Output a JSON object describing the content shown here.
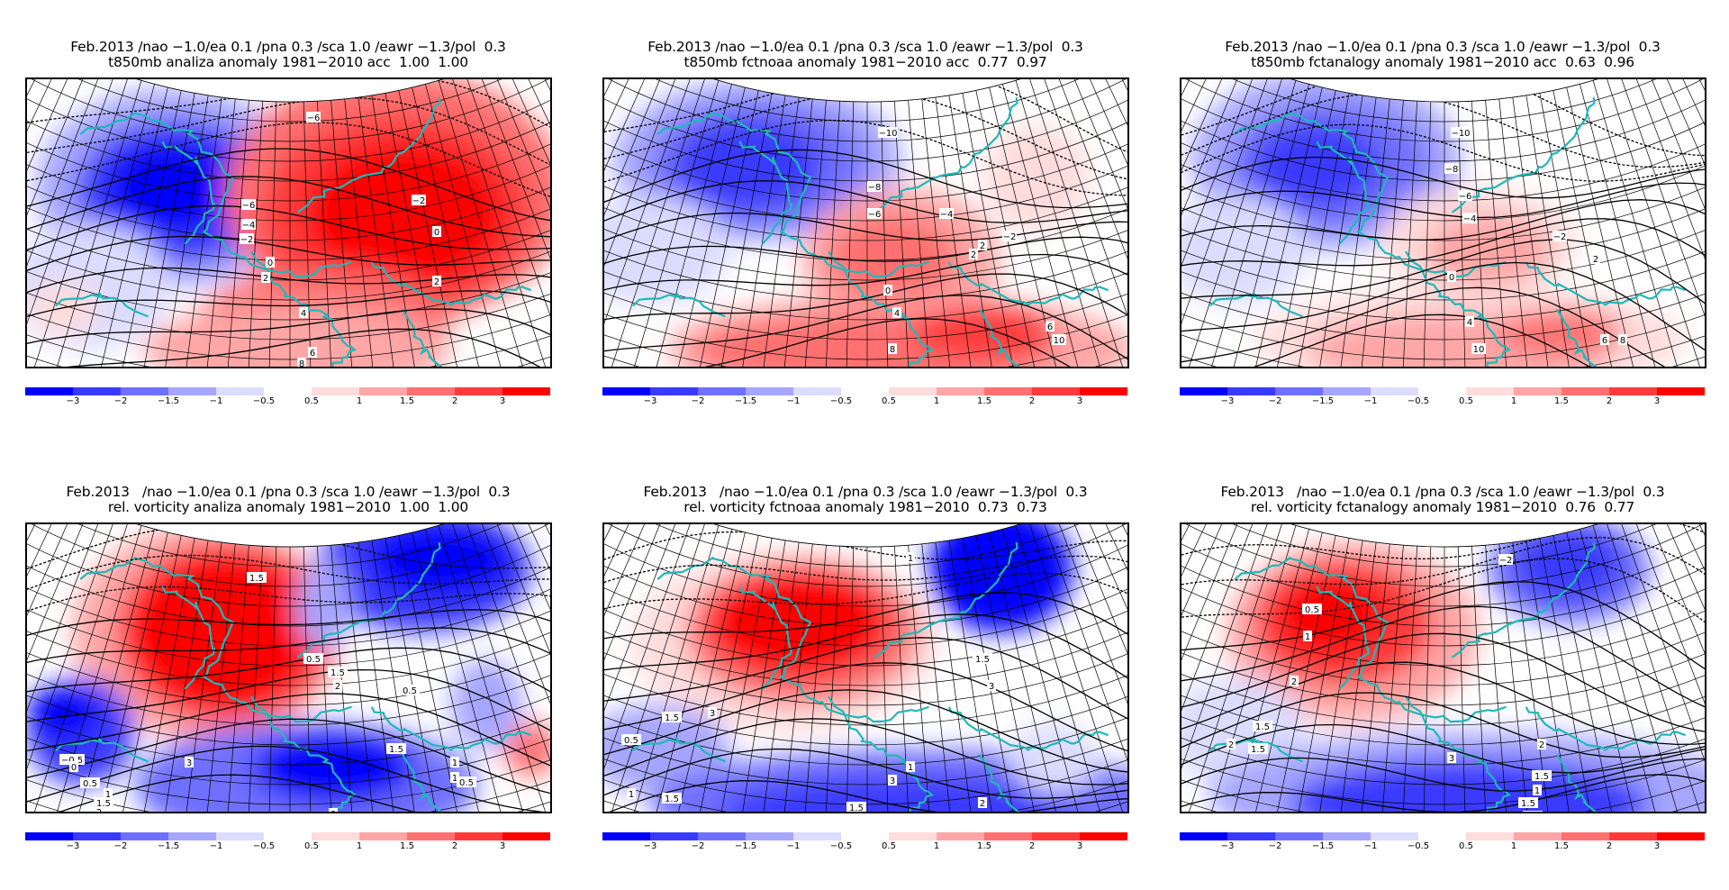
{
  "colorbar": {
    "segments": [
      {
        "color": "#0000ff"
      },
      {
        "color": "#3a3aff"
      },
      {
        "color": "#7070ff"
      },
      {
        "color": "#a6a6ff"
      },
      {
        "color": "#dcdcff"
      },
      {
        "color": "#ffdcdc"
      },
      {
        "color": "#ffa6a6"
      },
      {
        "color": "#ff7070"
      },
      {
        "color": "#ff3a3a"
      },
      {
        "color": "#ff0000"
      }
    ],
    "labels": [
      "-3",
      "-2",
      "-1.5",
      "-1",
      "-0.5",
      "0.5",
      "1",
      "1.5",
      "2",
      "3"
    ]
  },
  "panels": [
    {
      "title_line1": "Feb.2013 /nao −1.0/ea 0.1 /pna 0.3 /sca 1.0 /eawr −1.3/pol  0.3",
      "title_line2": "t850mb analiza anomaly 1981−2010 acc  1.00  1.00",
      "variable": "t850mb",
      "source": "analiza",
      "acc": [
        "1.00",
        "1.00"
      ],
      "contour_labels": [
        "-6",
        "-6",
        "-4",
        "-2",
        "-2",
        "0",
        "0",
        "2",
        "2",
        "4",
        "6",
        "8"
      ]
    },
    {
      "title_line1": "Feb.2013 /nao −1.0/ea 0.1 /pna 0.3 /sca 1.0 /eawr −1.3/pol  0.3",
      "title_line2": "t850mb fctnoaa anomaly 1981−2010 acc  0.77  0.97",
      "variable": "t850mb",
      "source": "fctnoaa",
      "acc": [
        "0.77",
        "0.97"
      ],
      "contour_labels": [
        "-10",
        "-8",
        "-6",
        "-4",
        "-2",
        "0",
        "2",
        "2",
        "4",
        "6",
        "8",
        "10"
      ]
    },
    {
      "title_line1": "Feb.2013 /nao −1.0/ea 0.1 /pna 0.3 /sca 1.0 /eawr −1.3/pol  0.3",
      "title_line2": "t850mb fctanalogy anomaly 1981−2010 acc  0.63  0.96",
      "variable": "t850mb",
      "source": "fctanalogy",
      "acc": [
        "0.63",
        "0.96"
      ],
      "contour_labels": [
        "-10",
        "-8",
        "-6",
        "-4",
        "-2",
        "0",
        "2",
        "4",
        "6",
        "8",
        "10"
      ]
    },
    {
      "title_line1": "Feb.2013   /nao −1.0/ea 0.1 /pna 0.3 /sca 1.0 /eawr −1.3/pol  0.3",
      "title_line2": "rel. vorticity analiza anomaly 1981−2010  1.00  1.00",
      "variable": "rel. vorticity",
      "source": "analiza",
      "acc": [
        "1.00",
        "1.00"
      ],
      "contour_labels": [
        "1.5",
        "0.5",
        "1.5",
        "2",
        "0.5",
        "-0.5",
        "0",
        "0.5",
        "1",
        "1.5",
        "2",
        "1.5",
        "1",
        "1",
        "0.5",
        "3",
        "0",
        "-0.5"
      ]
    },
    {
      "title_line1": "Feb.2013   /nao −1.0/ea 0.1 /pna 0.3 /sca 1.0 /eawr −1.3/pol  0.3",
      "title_line2": "rel. vorticity fctnoaa anomaly 1981−2010  0.73  0.73",
      "variable": "rel. vorticity",
      "source": "fctnoaa",
      "acc": [
        "0.73",
        "0.73"
      ],
      "contour_labels": [
        "1",
        "1.5",
        "3",
        "0.5",
        "1",
        "1.5",
        "1.5",
        "3",
        "1",
        "3",
        "1.5",
        "2"
      ]
    },
    {
      "title_line1": "Feb.2013   /nao −1.0/ea 0.1 /pna 0.3 /sca 1.0 /eawr −1.3/pol  0.3",
      "title_line2": "rel. vorticity fctanalogy anomaly 1981−2010  0.76  0.77",
      "variable": "rel. vorticity",
      "source": "fctanalogy",
      "acc": [
        "0.76",
        "0.77"
      ],
      "contour_labels": [
        "-2",
        "0.5",
        "1",
        "2",
        "1.5",
        "2",
        "1.5",
        "2",
        "3",
        "1.5",
        "1",
        "1.5",
        "3.5"
      ]
    }
  ]
}
